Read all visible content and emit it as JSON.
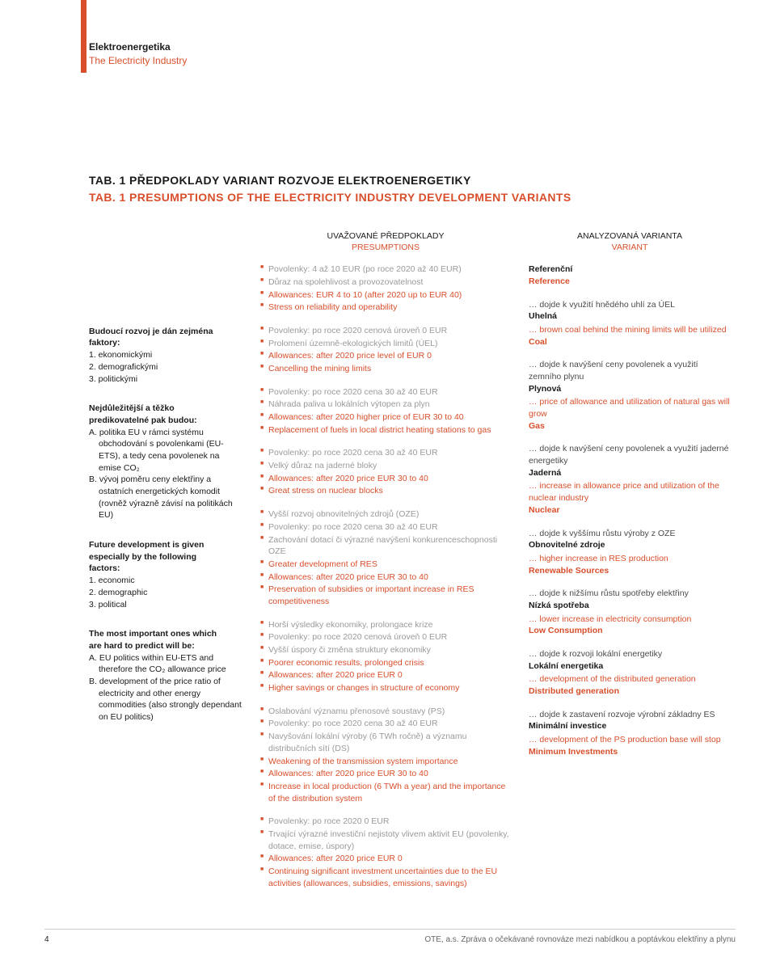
{
  "header": {
    "line1": "Elektroenergetika",
    "line2": "The Electricity Industry"
  },
  "tab_title_cz": "TAB. 1 PŘEDPOKLADY VARIANT ROZVOJE ELEKTROENERGETIKY",
  "tab_title_en": "TAB. 1 PRESUMPTIONS OF THE ELECTRICITY INDUSTRY DEVELOPMENT VARIANTS",
  "col_heads": {
    "presumptions_cz": "UVAŽOVANÉ PŘEDPOKLADY",
    "presumptions_en": "PRESUMPTIONS",
    "variant_cz": "ANALYZOVANÁ VARIANTA",
    "variant_en": "VARIANT"
  },
  "left_blocks": [
    {
      "bold_lines": [
        "Budoucí rozvoj je dán zejména",
        "faktory:"
      ],
      "items": [
        "1. ekonomickými",
        "2. demografickými",
        "3. politickými"
      ]
    },
    {
      "bold_lines": [
        "Nejdůležitější a těžko",
        "predikovatelné pak budou:"
      ],
      "items": [
        "A. politika EU v rámci systému obchodování s povolenkami (EU-ETS), a tedy cena povolenek na emise CO₂",
        "B. vývoj poměru ceny elektřiny a ostatních energetických komodit (rovněž výrazně závisí na politikách EU)"
      ]
    },
    {
      "bold_lines": [
        "Future development is given",
        "especially by the following",
        "factors:"
      ],
      "items": [
        "1. economic",
        "2. demographic",
        "3. political"
      ]
    },
    {
      "bold_lines": [
        "The most important ones which",
        "are hard to predict will be:"
      ],
      "items": [
        "A. EU politics within EU-ETS and therefore the CO₂ allowance price",
        "B. development of the price ratio of electricity and other energy commodities (also strongly dependant on EU politics)"
      ]
    }
  ],
  "scenarios": [
    {
      "cz": [
        "Povolenky: 4 až 10 EUR (po roce 2020 až 40 EUR)",
        "Důraz na spolehlivost a provozovatelnost"
      ],
      "en": [
        "Allowances: EUR 4 to 10 (after 2020 up to EUR 40)",
        "Stress on reliability and operability"
      ],
      "v_cz_pre": "",
      "v_cz_name": "Referenční",
      "v_en_pre": "",
      "v_en_name": "Reference"
    },
    {
      "cz": [
        "Povolenky: po roce 2020 cenová úroveň 0 EUR",
        "Prolomení územně-ekologických limitů (ÚEL)"
      ],
      "en": [
        "Allowances: after 2020 price level of EUR 0",
        "Cancelling the mining limits"
      ],
      "v_cz_pre": "… dojde k využití hnědého uhlí za ÚEL",
      "v_cz_name": "Uhelná",
      "v_en_pre": "… brown coal behind the mining limits will be utilized",
      "v_en_name": "Coal"
    },
    {
      "cz": [
        "Povolenky: po roce 2020 cena 30 až 40 EUR",
        "Náhrada paliva u lokálních výtopen za plyn"
      ],
      "en": [
        "Allowances: after 2020 higher price of EUR 30 to 40",
        "Replacement of fuels in local district heating stations to gas"
      ],
      "v_cz_pre": "… dojde k navýšení ceny povolenek a využití zemního plynu",
      "v_cz_name": "Plynová",
      "v_en_pre": "… price of allowance and utilization of natural gas will grow",
      "v_en_name": "Gas"
    },
    {
      "cz": [
        "Povolenky: po roce 2020 cena 30 až 40 EUR",
        "Velký důraz na jaderné bloky"
      ],
      "en": [
        "Allowances: after 2020 price EUR 30 to 40",
        "Great stress on nuclear blocks"
      ],
      "v_cz_pre": "… dojde k navýšení ceny povolenek a využití jaderné energetiky",
      "v_cz_name": "Jaderná",
      "v_en_pre": "… increase in allowance price and utilization of the nuclear industry",
      "v_en_name": "Nuclear"
    },
    {
      "cz": [
        "Vyšší rozvoj obnovitelných zdrojů (OZE)",
        "Povolenky: po roce 2020 cena 30 až 40 EUR",
        "Zachování dotací či výrazné navýšení konkurenceschopnosti OZE"
      ],
      "en": [
        "Greater development of RES",
        "Allowances: after 2020 price EUR 30 to 40",
        "Preservation of subsidies or important increase in RES competitiveness"
      ],
      "v_cz_pre": "… dojde k vyššímu růstu výroby z OZE",
      "v_cz_name": "Obnovitelné zdroje",
      "v_en_pre": "… higher increase in RES production",
      "v_en_name": "Renewable Sources"
    },
    {
      "cz": [
        "Horší výsledky ekonomiky, prolongace krize",
        "Povolenky: po roce 2020 cenová úroveň 0 EUR",
        "Vyšší úspory či změna struktury ekonomiky"
      ],
      "en": [
        "Poorer economic results, prolonged crisis",
        "Allowances: after 2020 price EUR 0",
        "Higher savings or changes in structure of economy"
      ],
      "v_cz_pre": "… dojde k nižšímu růstu spotřeby elektřiny",
      "v_cz_name": "Nízká spotřeba",
      "v_en_pre": "… lower increase in electricity consumption",
      "v_en_name": "Low Consumption"
    },
    {
      "cz": [
        "Oslabování významu přenosové soustavy (PS)",
        "Povolenky: po roce 2020 cena 30 až 40 EUR",
        "Navyšování lokální výroby (6 TWh ročně) a významu distribučních sítí (DS)"
      ],
      "en": [
        "Weakening of the transmission system importance",
        "Allowances: after 2020 price EUR 30 to 40",
        "Increase in local production (6 TWh a year) and the importance of the distribution system"
      ],
      "v_cz_pre": "… dojde k rozvoji lokální energetiky",
      "v_cz_name": "Lokální energetika",
      "v_en_pre": "… development of the distributed generation",
      "v_en_name": "Distributed generation"
    },
    {
      "cz": [
        "Povolenky: po roce 2020 0 EUR",
        "Trvající výrazné investiční nejistoty vlivem aktivit EU (povolenky, dotace, emise, úspory)"
      ],
      "en": [
        "Allowances: after 2020 price EUR 0",
        "Continuing significant investment uncertainties due to the EU activities (allowances, subsidies, emissions, savings)"
      ],
      "v_cz_pre": "… dojde k zastavení rozvoje výrobní základny ES",
      "v_cz_name": "Minimální investice",
      "v_en_pre": "… development of the PS production base will stop",
      "v_en_name": "Minimum Investments"
    }
  ],
  "footer": {
    "page": "4",
    "right": "OTE, a.s.  Zpráva o očekávané rovnováze mezi nabídkou a poptávkou elektřiny a plynu"
  },
  "colors": {
    "accent": "#d94f2c",
    "text": "#1a1a1a",
    "muted": "#9a9a9a"
  }
}
